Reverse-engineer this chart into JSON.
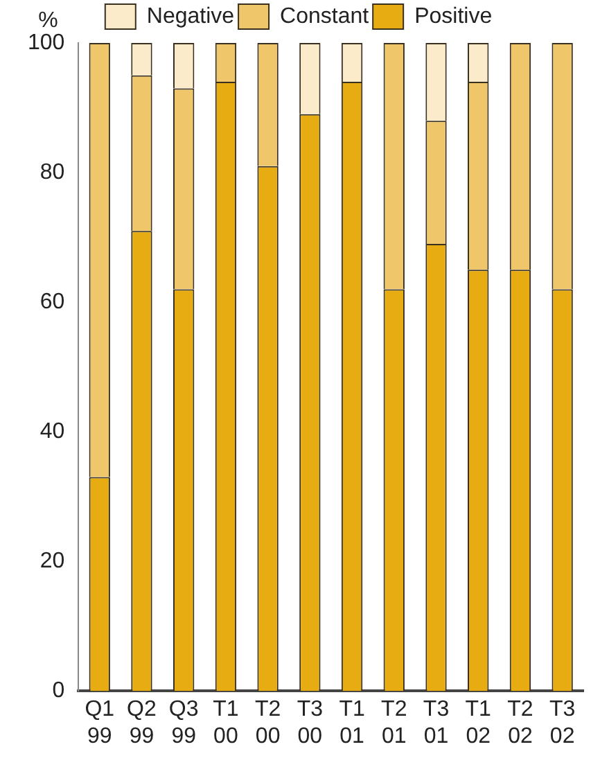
{
  "chart_data": {
    "type": "bar",
    "stacked": true,
    "ylabel": "%",
    "categories": [
      "Q1 99",
      "Q2 99",
      "Q3 99",
      "T1 00",
      "T2 00",
      "T3 00",
      "T1 01",
      "T2 01",
      "T3 01",
      "T1 02",
      "T2 02",
      "T3 02"
    ],
    "series": [
      {
        "name": "Positive",
        "color": "#e6ac12",
        "values": [
          33,
          71,
          62,
          94,
          81,
          89,
          94,
          62,
          69,
          65,
          65,
          62
        ]
      },
      {
        "name": "Constant",
        "color": "#f0c66a",
        "values": [
          67,
          24,
          31,
          6,
          19,
          0,
          0,
          38,
          19,
          29,
          35,
          38
        ]
      },
      {
        "name": "Negative",
        "color": "#fbebcb",
        "values": [
          0,
          5,
          7,
          0,
          0,
          11,
          6,
          0,
          12,
          6,
          0,
          0
        ]
      }
    ],
    "ylim": [
      0,
      100
    ],
    "yticks": [
      0,
      20,
      40,
      60,
      80,
      100
    ],
    "grid": false,
    "legend": "top"
  }
}
